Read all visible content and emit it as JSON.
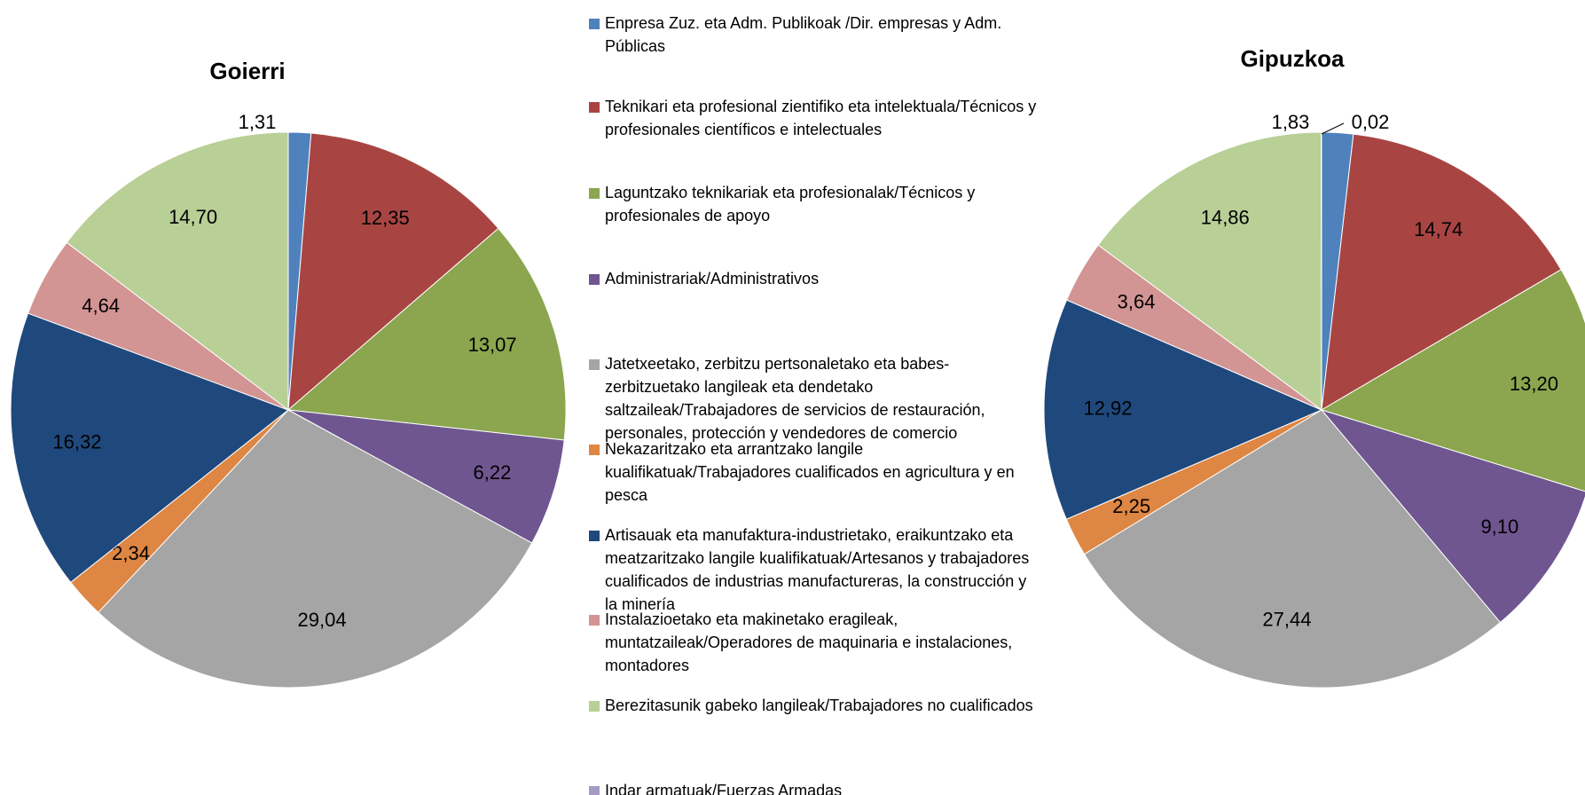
{
  "legend": {
    "labels": [
      "Enpresa Zuz. eta Adm. Publikoak /Dir. empresas y Adm. Públicas",
      "Teknikari eta profesional zientifiko eta intelektuala/Técnicos y profesionales científicos e intelectuales",
      "Laguntzako teknikariak eta profesionalak/Técnicos y profesionales de apoyo",
      "Administrariak/Administrativos",
      "Jatetxeetako, zerbitzu pertsonaletako eta babes-zerbitzuetako langileak eta dendetako saltzaileak/Trabajadores de servicios de restauración, personales, protección y vendedores de comercio",
      "Nekazaritzako eta arrantzako langile kualifikatuak/Trabajadores cualificados en agricultura y en pesca",
      "Artisauak eta manufaktura-industrietako, eraikuntzako eta meatzaritzako langile kualifikatuak/Artesanos y trabajadores cualificados de industrias manufactureras, la construcción y la minería",
      "Instalazioetako eta makinetako eragileak, muntatzaileak/Operadores de maquinaria e instalaciones, montadores",
      "Berezitasunik gabeko langileak/Trabajadores no cualificados",
      "Indar armatuak/Fuerzas Armadas"
    ],
    "colors": [
      "#4f81bd",
      "#a84543",
      "#8ba64e",
      "#6f5690",
      "#a5a5a5",
      "#de8643",
      "#1f497d",
      "#d39494",
      "#b8cf96",
      "#a59bc4"
    ]
  },
  "chart_data": [
    {
      "type": "pie",
      "title": "Goierri",
      "values": [
        1.31,
        12.35,
        13.07,
        6.22,
        29.04,
        2.34,
        16.32,
        4.64,
        14.7,
        0
      ],
      "value_labels": [
        "1,31",
        "12,35",
        "13,07",
        "6,22",
        "29,04",
        "2,34",
        "16,32",
        "4,64",
        "14,70",
        null
      ]
    },
    {
      "type": "pie",
      "title": "Gipuzkoa",
      "values": [
        1.83,
        14.74,
        13.2,
        9.1,
        27.44,
        2.25,
        12.92,
        3.64,
        14.86,
        0.02
      ],
      "value_labels": [
        "1,83",
        "14,74",
        "13,20",
        "9,10",
        "27,44",
        "2,25",
        "12,92",
        "3,64",
        "14,86",
        "0,02"
      ]
    }
  ]
}
